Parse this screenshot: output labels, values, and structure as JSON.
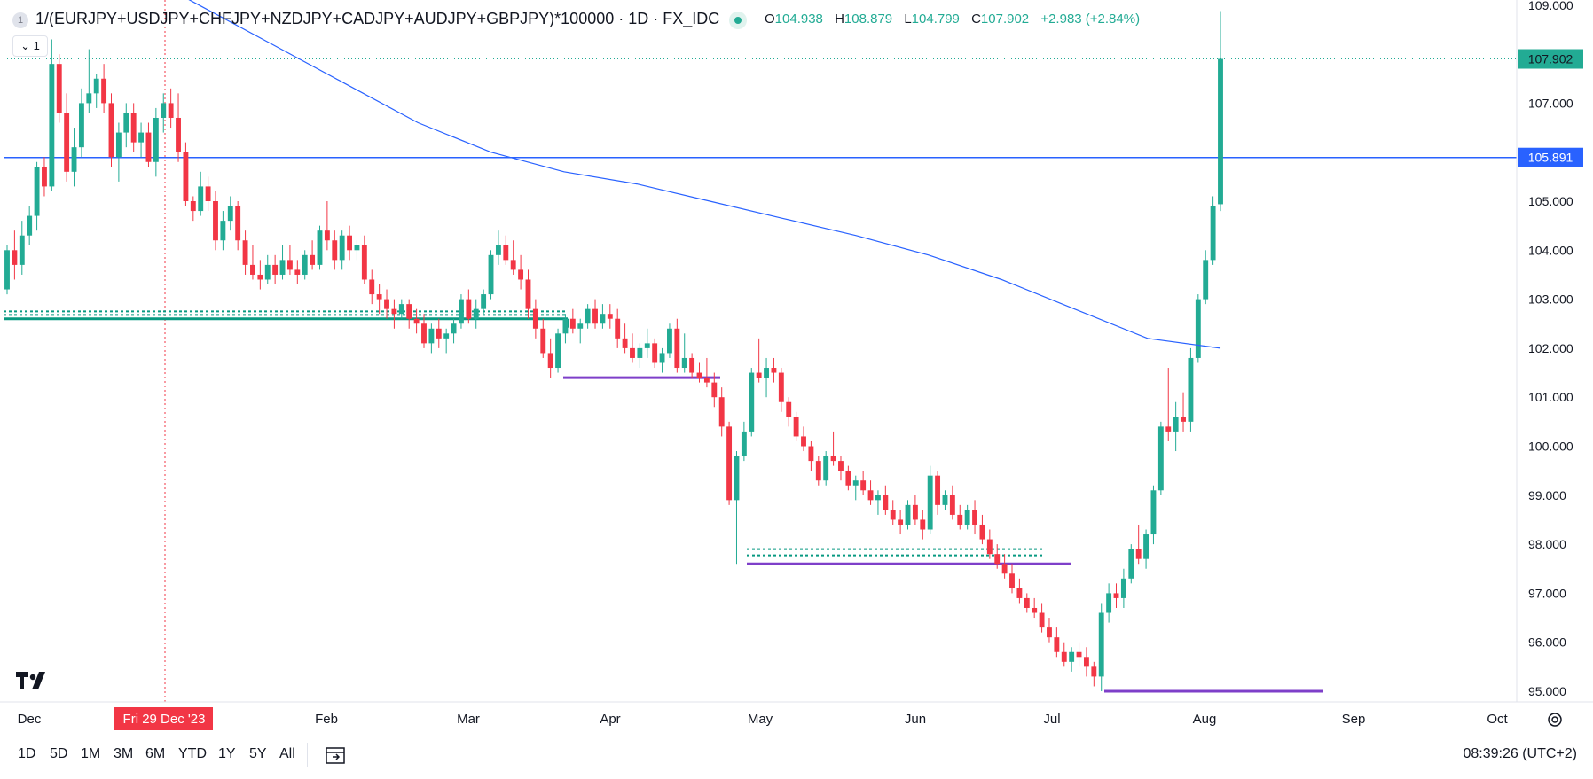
{
  "header": {
    "symbol_badge": "1",
    "title": "1/(EURJPY+USDJPY+CHFJPY+NZDJPY+CADJPY+AUDJPY+GBPJPY)*100000 · 1D · FX_IDC",
    "ohlc": [
      {
        "key": "O",
        "value": "104.938"
      },
      {
        "key": "H",
        "value": "108.879"
      },
      {
        "key": "L",
        "value": "104.799"
      },
      {
        "key": "C",
        "value": "107.902"
      },
      {
        "key": "",
        "value": "+2.983 (+2.84%)"
      }
    ],
    "interval_badge": "1"
  },
  "colors": {
    "up": "#22ab94",
    "down": "#f23645",
    "ma": "#2962ff",
    "horizontal_line": "#2962ff",
    "support_zone": "#089981",
    "lows": "#7e3fc9",
    "crosshair": "#f23645"
  },
  "bottom": {
    "timeframes": [
      "1D",
      "5D",
      "1M",
      "3M",
      "6M",
      "YTD",
      "1Y",
      "5Y",
      "All"
    ],
    "clock": "08:39:26 (UTC+2)",
    "goto_icon": "calendar-goto-icon",
    "settings_icon": "gear-icon"
  },
  "chart_data": {
    "type": "candlestick",
    "title": "1/(EURJPY+USDJPY+CHFJPY+NZDJPY+CADJPY+AUDJPY+GBPJPY)*100000",
    "x_tick_labels": [
      "Dec",
      "Feb",
      "Mar",
      "Apr",
      "May",
      "Jun",
      "Jul",
      "Aug",
      "Sep",
      "Oct"
    ],
    "y_tick_labels": [
      "95.000",
      "96.000",
      "97.000",
      "98.000",
      "99.000",
      "100.000",
      "101.000",
      "102.000",
      "103.000",
      "104.000",
      "105.000",
      "106.000",
      "107.000",
      "108.000",
      "109.000"
    ],
    "ylim": [
      94.8,
      109.1
    ],
    "last_price_label": "107.902",
    "horizontal_line_label": "105.891",
    "horizontal_line_value": 105.891,
    "crosshair_label": "Fri 29 Dec '23",
    "moving_average_values": [
      110.6,
      109.8,
      109.0,
      108.2,
      107.4,
      106.6,
      106.0,
      105.6,
      105.35,
      105.0,
      104.65,
      104.3,
      103.9,
      103.4,
      102.8,
      102.2,
      102.0
    ],
    "support_zone": {
      "value": 102.6,
      "dotted_upper": 102.75
    },
    "lower_zone": {
      "value": 97.9
    },
    "lows": [
      {
        "value": 101.4
      },
      {
        "value": 97.6
      },
      {
        "value": 95.0
      }
    ],
    "candles": [
      [
        103.2,
        104.1,
        103.1,
        104.0
      ],
      [
        104.0,
        104.4,
        103.4,
        103.7
      ],
      [
        103.7,
        104.6,
        103.5,
        104.3
      ],
      [
        104.3,
        104.9,
        104.1,
        104.7
      ],
      [
        104.7,
        105.8,
        104.4,
        105.7
      ],
      [
        105.7,
        105.9,
        105.1,
        105.3
      ],
      [
        105.3,
        108.3,
        105.2,
        107.8
      ],
      [
        107.8,
        108.0,
        106.6,
        106.8
      ],
      [
        106.8,
        107.2,
        105.4,
        105.6
      ],
      [
        105.6,
        106.5,
        105.3,
        106.1
      ],
      [
        106.1,
        107.3,
        105.9,
        107.0
      ],
      [
        107.0,
        108.1,
        106.8,
        107.2
      ],
      [
        107.2,
        107.6,
        106.9,
        107.5
      ],
      [
        107.5,
        107.8,
        106.8,
        107.0
      ],
      [
        107.0,
        107.2,
        105.7,
        105.9
      ],
      [
        105.9,
        106.6,
        105.4,
        106.4
      ],
      [
        106.4,
        107.0,
        106.1,
        106.8
      ],
      [
        106.8,
        107.0,
        106.0,
        106.2
      ],
      [
        106.2,
        106.6,
        105.9,
        106.4
      ],
      [
        106.4,
        106.6,
        105.7,
        105.8
      ],
      [
        105.8,
        106.9,
        105.5,
        106.7
      ],
      [
        106.7,
        107.2,
        106.4,
        107.0
      ],
      [
        107.0,
        107.3,
        106.5,
        106.7
      ],
      [
        106.7,
        107.2,
        105.8,
        106.0
      ],
      [
        106.0,
        106.2,
        104.9,
        105.0
      ],
      [
        105.0,
        105.1,
        104.6,
        104.8
      ],
      [
        104.8,
        105.6,
        104.7,
        105.3
      ],
      [
        105.3,
        105.5,
        104.8,
        105.0
      ],
      [
        105.0,
        105.2,
        104.0,
        104.2
      ],
      [
        104.2,
        104.8,
        104.0,
        104.6
      ],
      [
        104.6,
        105.1,
        104.4,
        104.9
      ],
      [
        104.9,
        105.0,
        104.0,
        104.2
      ],
      [
        104.2,
        104.4,
        103.5,
        103.7
      ],
      [
        103.7,
        104.1,
        103.4,
        103.5
      ],
      [
        103.5,
        103.8,
        103.2,
        103.4
      ],
      [
        103.4,
        103.9,
        103.3,
        103.7
      ],
      [
        103.7,
        103.9,
        103.3,
        103.5
      ],
      [
        103.5,
        104.1,
        103.4,
        103.8
      ],
      [
        103.8,
        104.1,
        103.5,
        103.6
      ],
      [
        103.6,
        103.8,
        103.3,
        103.5
      ],
      [
        103.5,
        104.0,
        103.4,
        103.9
      ],
      [
        103.9,
        104.2,
        103.6,
        103.7
      ],
      [
        103.7,
        104.5,
        103.6,
        104.4
      ],
      [
        104.4,
        105.0,
        104.0,
        104.2
      ],
      [
        104.2,
        104.4,
        103.6,
        103.8
      ],
      [
        103.8,
        104.4,
        103.6,
        104.3
      ],
      [
        104.3,
        104.5,
        103.8,
        104.0
      ],
      [
        104.0,
        104.2,
        103.8,
        104.1
      ],
      [
        104.1,
        104.3,
        103.3,
        103.4
      ],
      [
        103.4,
        103.6,
        102.9,
        103.1
      ],
      [
        103.1,
        103.3,
        102.7,
        103.0
      ],
      [
        103.0,
        103.2,
        102.6,
        102.8
      ],
      [
        102.8,
        103.0,
        102.4,
        102.7
      ],
      [
        102.7,
        103.0,
        102.6,
        102.9
      ],
      [
        102.9,
        103.0,
        102.4,
        102.6
      ],
      [
        102.6,
        102.8,
        102.3,
        102.5
      ],
      [
        102.5,
        102.7,
        102.0,
        102.1
      ],
      [
        102.1,
        102.5,
        101.9,
        102.4
      ],
      [
        102.4,
        102.6,
        102.0,
        102.2
      ],
      [
        102.2,
        102.4,
        101.9,
        102.3
      ],
      [
        102.3,
        102.6,
        102.1,
        102.5
      ],
      [
        102.5,
        103.1,
        102.4,
        103.0
      ],
      [
        103.0,
        103.2,
        102.5,
        102.6
      ],
      [
        102.6,
        103.0,
        102.4,
        102.8
      ],
      [
        102.8,
        103.2,
        102.7,
        103.1
      ],
      [
        103.1,
        104.0,
        103.0,
        103.9
      ],
      [
        103.9,
        104.4,
        103.7,
        104.1
      ],
      [
        104.1,
        104.3,
        103.7,
        103.8
      ],
      [
        103.8,
        104.2,
        103.5,
        103.6
      ],
      [
        103.6,
        103.9,
        103.2,
        103.4
      ],
      [
        103.4,
        103.6,
        102.6,
        102.8
      ],
      [
        102.8,
        103.0,
        102.2,
        102.4
      ],
      [
        102.4,
        102.6,
        101.8,
        101.9
      ],
      [
        101.9,
        102.2,
        101.4,
        101.6
      ],
      [
        101.6,
        102.4,
        101.5,
        102.3
      ],
      [
        102.3,
        102.7,
        102.1,
        102.6
      ],
      [
        102.6,
        102.8,
        102.3,
        102.4
      ],
      [
        102.4,
        102.6,
        102.1,
        102.5
      ],
      [
        102.5,
        102.9,
        102.4,
        102.8
      ],
      [
        102.8,
        103.0,
        102.4,
        102.5
      ],
      [
        102.5,
        102.9,
        102.4,
        102.7
      ],
      [
        102.7,
        102.9,
        102.4,
        102.6
      ],
      [
        102.6,
        102.8,
        102.0,
        102.2
      ],
      [
        102.2,
        102.5,
        101.9,
        102.0
      ],
      [
        102.0,
        102.3,
        101.7,
        101.8
      ],
      [
        101.8,
        102.1,
        101.6,
        102.0
      ],
      [
        102.0,
        102.4,
        101.8,
        102.1
      ],
      [
        102.1,
        102.2,
        101.6,
        101.7
      ],
      [
        101.7,
        102.0,
        101.5,
        101.9
      ],
      [
        101.9,
        102.5,
        101.8,
        102.4
      ],
      [
        102.4,
        102.6,
        101.5,
        101.6
      ],
      [
        101.6,
        102.3,
        101.5,
        101.8
      ],
      [
        101.8,
        101.9,
        101.4,
        101.5
      ],
      [
        101.5,
        101.7,
        101.3,
        101.4
      ],
      [
        101.4,
        101.8,
        101.2,
        101.3
      ],
      [
        101.3,
        101.5,
        100.8,
        101.0
      ],
      [
        101.0,
        101.2,
        100.2,
        100.4
      ],
      [
        100.4,
        100.5,
        98.8,
        98.9
      ],
      [
        98.9,
        99.9,
        97.6,
        99.8
      ],
      [
        99.8,
        100.5,
        99.7,
        100.3
      ],
      [
        100.3,
        101.6,
        100.2,
        101.5
      ],
      [
        101.5,
        102.2,
        101.3,
        101.4
      ],
      [
        101.4,
        101.8,
        101.0,
        101.6
      ],
      [
        101.6,
        101.8,
        101.3,
        101.5
      ],
      [
        101.5,
        101.6,
        100.7,
        100.9
      ],
      [
        100.9,
        101.0,
        100.4,
        100.6
      ],
      [
        100.6,
        100.7,
        100.1,
        100.2
      ],
      [
        100.2,
        100.4,
        99.9,
        100.0
      ],
      [
        100.0,
        100.1,
        99.5,
        99.7
      ],
      [
        99.7,
        99.8,
        99.2,
        99.3
      ],
      [
        99.3,
        99.9,
        99.2,
        99.8
      ],
      [
        99.8,
        100.3,
        99.6,
        99.7
      ],
      [
        99.7,
        99.8,
        99.3,
        99.5
      ],
      [
        99.5,
        99.6,
        99.1,
        99.2
      ],
      [
        99.2,
        99.4,
        98.9,
        99.3
      ],
      [
        99.3,
        99.5,
        99.0,
        99.1
      ],
      [
        99.1,
        99.3,
        98.8,
        98.9
      ],
      [
        98.9,
        99.1,
        98.6,
        99.0
      ],
      [
        99.0,
        99.2,
        98.6,
        98.7
      ],
      [
        98.7,
        98.9,
        98.4,
        98.5
      ],
      [
        98.5,
        98.7,
        98.2,
        98.4
      ],
      [
        98.4,
        98.9,
        98.3,
        98.8
      ],
      [
        98.8,
        99.0,
        98.4,
        98.5
      ],
      [
        98.5,
        98.7,
        98.1,
        98.3
      ],
      [
        98.3,
        99.6,
        98.2,
        99.4
      ],
      [
        99.4,
        99.5,
        98.6,
        98.8
      ],
      [
        98.8,
        99.1,
        98.7,
        99.0
      ],
      [
        99.0,
        99.2,
        98.5,
        98.6
      ],
      [
        98.6,
        98.8,
        98.3,
        98.4
      ],
      [
        98.4,
        98.8,
        98.3,
        98.7
      ],
      [
        98.7,
        98.9,
        98.2,
        98.4
      ],
      [
        98.4,
        98.6,
        98.0,
        98.1
      ],
      [
        98.1,
        98.3,
        97.7,
        97.8
      ],
      [
        97.8,
        98.0,
        97.5,
        97.6
      ],
      [
        97.6,
        97.8,
        97.3,
        97.4
      ],
      [
        97.4,
        97.6,
        97.0,
        97.1
      ],
      [
        97.1,
        97.3,
        96.8,
        96.9
      ],
      [
        96.9,
        97.0,
        96.6,
        96.7
      ],
      [
        96.7,
        96.9,
        96.5,
        96.6
      ],
      [
        96.6,
        96.8,
        96.2,
        96.3
      ],
      [
        96.3,
        96.5,
        96.0,
        96.1
      ],
      [
        96.1,
        96.3,
        95.7,
        95.8
      ],
      [
        95.8,
        96.0,
        95.5,
        95.6
      ],
      [
        95.6,
        95.9,
        95.4,
        95.8
      ],
      [
        95.8,
        96.0,
        95.5,
        95.7
      ],
      [
        95.7,
        95.9,
        95.3,
        95.5
      ],
      [
        95.5,
        95.6,
        95.1,
        95.3
      ],
      [
        95.3,
        96.8,
        95.0,
        96.6
      ],
      [
        96.6,
        97.2,
        96.4,
        97.0
      ],
      [
        97.0,
        97.2,
        96.7,
        96.9
      ],
      [
        96.9,
        97.5,
        96.7,
        97.3
      ],
      [
        97.3,
        98.0,
        97.2,
        97.9
      ],
      [
        97.9,
        98.4,
        97.6,
        97.7
      ],
      [
        97.7,
        98.3,
        97.5,
        98.2
      ],
      [
        98.2,
        99.2,
        98.0,
        99.1
      ],
      [
        99.1,
        100.5,
        99.0,
        100.4
      ],
      [
        100.4,
        101.6,
        100.1,
        100.3
      ],
      [
        100.3,
        100.9,
        99.9,
        100.6
      ],
      [
        100.6,
        101.1,
        100.3,
        100.5
      ],
      [
        100.5,
        102.0,
        100.3,
        101.8
      ],
      [
        101.8,
        103.1,
        101.7,
        103.0
      ],
      [
        103.0,
        104.0,
        102.9,
        103.8
      ],
      [
        103.8,
        105.1,
        103.7,
        104.9
      ],
      [
        104.938,
        108.879,
        104.799,
        107.902
      ]
    ]
  }
}
